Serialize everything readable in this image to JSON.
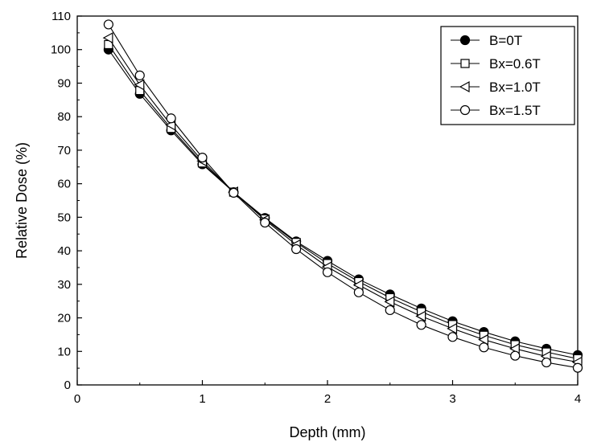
{
  "chart_data": {
    "type": "line",
    "title": "",
    "xlabel": "Depth (mm)",
    "ylabel": "Relative Dose (%)",
    "xlim": [
      0,
      4
    ],
    "ylim": [
      0,
      110
    ],
    "xticks": [
      0,
      1,
      2,
      3,
      4
    ],
    "yticks": [
      0,
      10,
      20,
      30,
      40,
      50,
      60,
      70,
      80,
      90,
      100,
      110
    ],
    "grid": false,
    "legend_position": "top-right",
    "x": [
      0.25,
      0.5,
      0.75,
      1.0,
      1.25,
      1.5,
      1.75,
      2.0,
      2.25,
      2.5,
      2.75,
      3.0,
      3.25,
      3.5,
      3.75,
      4.0
    ],
    "series": [
      {
        "name": "B=0T",
        "marker": "filled-circle",
        "values": [
          100,
          86.8,
          75.9,
          65.8,
          57.5,
          49.8,
          42.8,
          37.0,
          31.5,
          27.0,
          22.8,
          19.0,
          15.8,
          13.0,
          10.8,
          8.9
        ]
      },
      {
        "name": "Bx=0.6T",
        "marker": "open-square",
        "values": [
          101.5,
          87.8,
          76.5,
          66.2,
          57.5,
          49.5,
          42.5,
          36.2,
          30.8,
          26.0,
          21.8,
          18.0,
          14.8,
          12.0,
          9.8,
          7.8
        ]
      },
      {
        "name": "Bx=1.0T",
        "marker": "open-left-triangle",
        "values": [
          103.5,
          89.5,
          77.5,
          66.8,
          57.5,
          49.2,
          41.8,
          35.2,
          29.8,
          24.8,
          20.5,
          16.8,
          13.5,
          10.8,
          8.5,
          6.8
        ]
      },
      {
        "name": "Bx=1.5T",
        "marker": "open-circle",
        "values": [
          107.5,
          92.3,
          79.5,
          67.8,
          57.3,
          48.4,
          40.5,
          33.6,
          27.6,
          22.3,
          17.9,
          14.3,
          11.2,
          8.7,
          6.7,
          5.1
        ]
      }
    ]
  }
}
